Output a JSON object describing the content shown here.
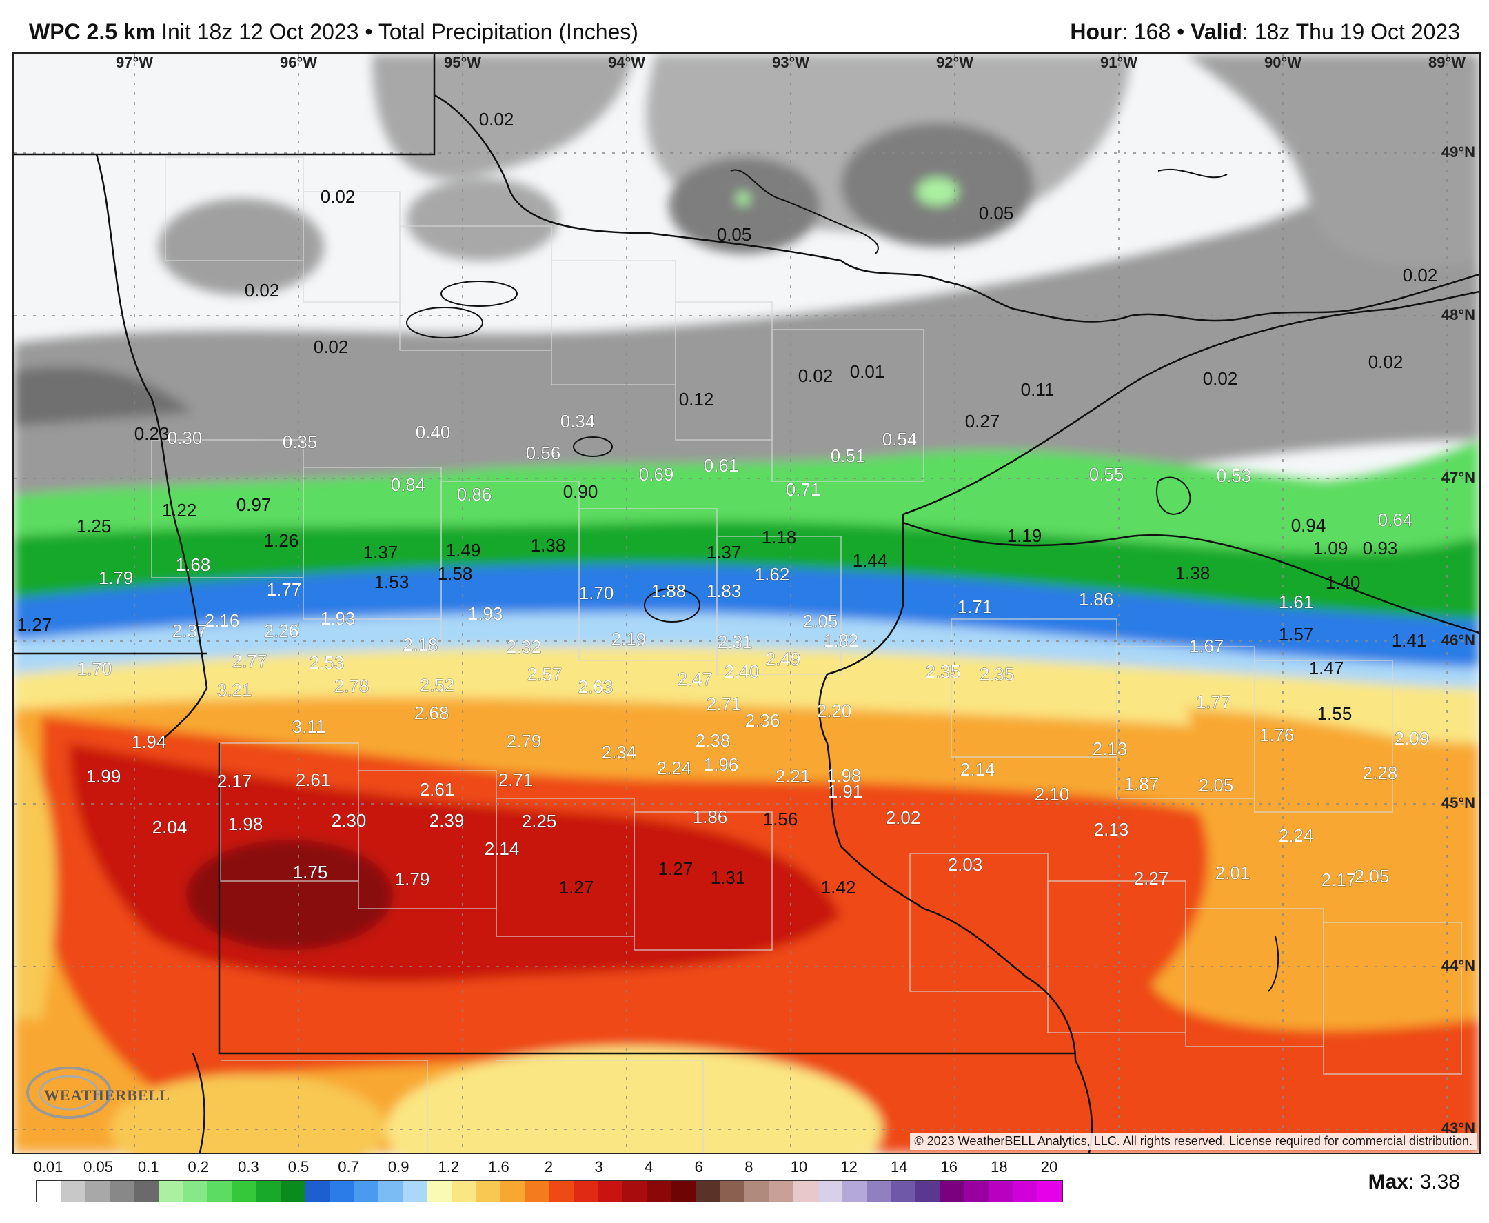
{
  "header": {
    "model": "WPC 2.5 km",
    "init": "Init 18z 12 Oct 2023",
    "separator": "•",
    "field": "Total Precipitation (Inches)",
    "hour_label": "Hour",
    "hour_value": ": 168",
    "valid_label": "Valid",
    "valid_value": ": 18z Thu 19 Oct 2023"
  },
  "map": {
    "longitude_labels": [
      "97°W",
      "96°W",
      "95°W",
      "94°W",
      "93°W",
      "92°W",
      "91°W",
      "90°W",
      "89°W"
    ],
    "latitude_labels": [
      "49°N",
      "48°N",
      "47°N",
      "46°N",
      "45°N",
      "44°N",
      "43°N"
    ],
    "values": [
      "0.02",
      "0.02",
      "0.02",
      "0.02",
      "0.05",
      "0.05",
      "0.02",
      "0.02",
      "0.02",
      "0.02",
      "0.01",
      "0.12",
      "0.11",
      "0.27",
      "0.23",
      "0.30",
      "0.35",
      "0.40",
      "0.34",
      "0.54",
      "0.56",
      "0.61",
      "0.69",
      "0.51",
      "0.71",
      "0.55",
      "0.53",
      "0.84",
      "0.86",
      "0.90",
      "0.97",
      "1.22",
      "1.25",
      "0.94",
      "1.09",
      "0.93",
      "0.64",
      "1.26",
      "1.37",
      "1.49",
      "1.38",
      "1.18",
      "1.37",
      "1.19",
      "1.44",
      "1.68",
      "1.79",
      "1.77",
      "1.53",
      "1.58",
      "1.62",
      "1.38",
      "1.40",
      "1.70",
      "1.88",
      "1.83",
      "1.71",
      "1.86",
      "1.61",
      "1.27",
      "2.16",
      "2.37",
      "2.26",
      "1.93",
      "1.93",
      "2.05",
      "1.57",
      "1.41",
      "2.18",
      "2.32",
      "2.19",
      "2.31",
      "1.82",
      "1.67",
      "2.77",
      "2.53",
      "2.49",
      "1.70",
      "2.40",
      "2.35",
      "2.35",
      "1.47",
      "2.57",
      "2.47",
      "3.21",
      "2.78",
      "2.52",
      "2.63",
      "2.71",
      "2.20",
      "1.77",
      "1.55",
      "2.68",
      "3.11",
      "2.36",
      "1.94",
      "2.79",
      "2.34",
      "2.38",
      "2.13",
      "1.76",
      "2.09",
      "1.96",
      "2.24",
      "2.14",
      "2.21",
      "1.98",
      "1.91",
      "2.28",
      "1.99",
      "2.17",
      "2.61",
      "2.71",
      "2.61",
      "1.87",
      "2.05",
      "2.10",
      "2.30",
      "1.98",
      "2.39",
      "2.25",
      "1.86",
      "1.56",
      "2.02",
      "2.13",
      "2.04",
      "2.24",
      "2.14",
      "2.03",
      "1.27",
      "1.75",
      "1.79",
      "1.31",
      "1.27",
      "2.27",
      "2.01",
      "2.17",
      "2.05",
      "1.42"
    ]
  },
  "logo": {
    "text": "WEATHERBELL"
  },
  "copyright": "© 2023 WeatherBELL Analytics, LLC. All rights reserved. License required for commercial distribution.",
  "legend": {
    "labels": [
      "0.01",
      "0.05",
      "0.1",
      "0.2",
      "0.3",
      "0.5",
      "0.7",
      "0.9",
      "1.2",
      "1.6",
      "2",
      "3",
      "4",
      "6",
      "8",
      "10",
      "12",
      "14",
      "16",
      "18",
      "20"
    ],
    "colors": [
      "#ffffff",
      "#c8c8c8",
      "#a8a8a8",
      "#888888",
      "#6a6a6a",
      "#aaf0a0",
      "#86e886",
      "#5cdc60",
      "#34c83a",
      "#18a82a",
      "#0a8c1c",
      "#1e5fd0",
      "#2a7ce6",
      "#4a9af0",
      "#7cbcf4",
      "#aad8f8",
      "#fafab4",
      "#fae682",
      "#f8c852",
      "#f8a830",
      "#f47c1c",
      "#ee4a14",
      "#e02a14",
      "#c81410",
      "#a80c0c",
      "#8a0808",
      "#6e0404",
      "#5a3228",
      "#8a6050",
      "#b08a7a",
      "#c8a098",
      "#e8c8c8",
      "#d8d0e8",
      "#b4a8d8",
      "#9080c0",
      "#7058a8",
      "#5a3890",
      "#7a0080",
      "#9a00a0",
      "#b800c0",
      "#d000d8",
      "#e400e8"
    ],
    "max_label": "Max",
    "max_value": ": 3.38"
  }
}
